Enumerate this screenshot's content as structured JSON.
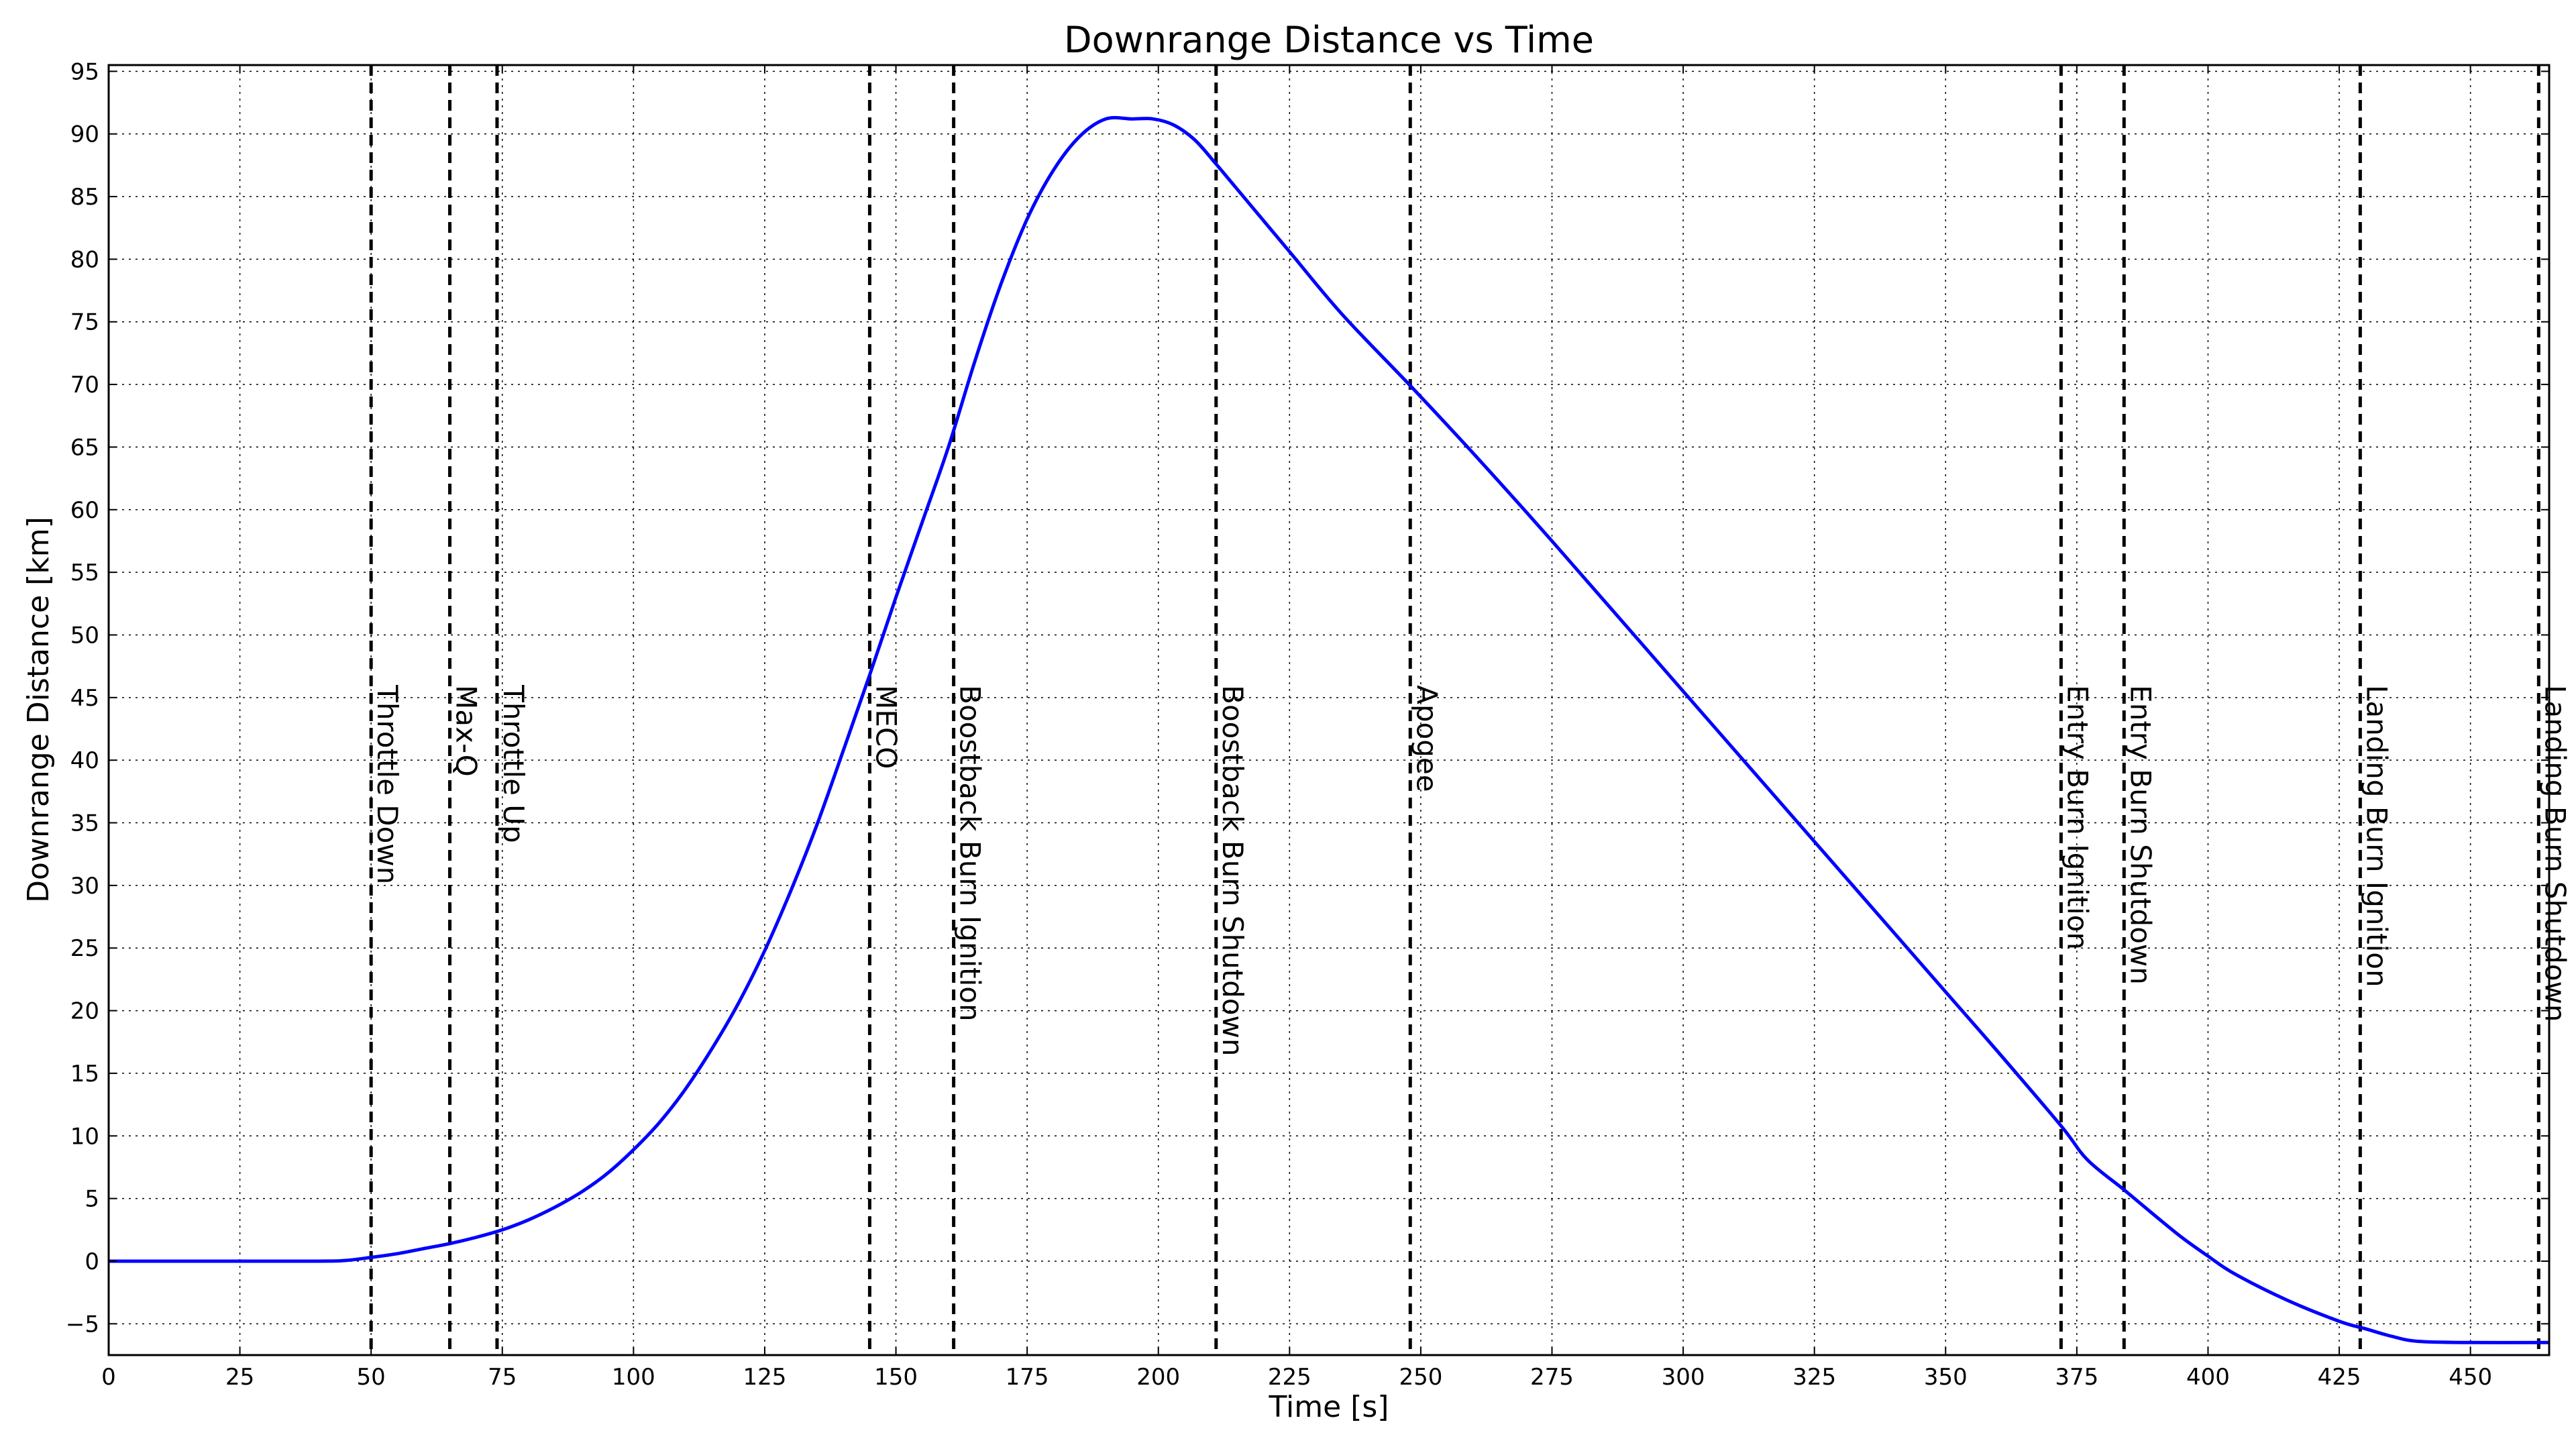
{
  "chart_data": {
    "type": "line",
    "title": "Downrange Distance vs Time",
    "xlabel": "Time [s]",
    "ylabel": "Downrange Distance [km]",
    "xlim": [
      0,
      465
    ],
    "ylim": [
      -7.5,
      95.5
    ],
    "xticks": [
      0,
      25,
      50,
      75,
      100,
      125,
      150,
      175,
      200,
      225,
      250,
      275,
      300,
      325,
      350,
      375,
      400,
      425,
      450
    ],
    "yticks": [
      -5,
      0,
      5,
      10,
      15,
      20,
      25,
      30,
      35,
      40,
      45,
      50,
      55,
      60,
      65,
      70,
      75,
      80,
      85,
      90,
      95
    ],
    "grid": true,
    "line_color": "#0000ff",
    "series": [
      {
        "x": [
          0,
          20,
          40,
          45,
          50,
          55,
          60,
          65,
          70,
          75,
          80,
          85,
          90,
          95,
          100,
          105,
          110,
          115,
          120,
          125,
          130,
          135,
          140,
          145,
          150,
          155,
          160,
          165,
          170,
          175,
          180,
          185,
          190,
          195,
          199,
          203,
          207,
          211,
          215,
          225,
          235,
          248,
          260,
          275,
          300,
          325,
          350,
          360,
          372,
          377,
          384,
          390,
          395,
          400,
          405,
          415,
          425,
          430,
          435,
          440,
          450,
          465
        ],
        "y": [
          0,
          0,
          0,
          0.05,
          0.3,
          0.6,
          1.0,
          1.4,
          1.9,
          2.5,
          3.3,
          4.3,
          5.5,
          7.0,
          8.9,
          11.1,
          13.8,
          17.0,
          20.6,
          24.8,
          29.6,
          34.9,
          40.8,
          46.8,
          53.0,
          59.0,
          65.0,
          71.8,
          78.0,
          83.2,
          87.1,
          89.8,
          91.2,
          91.2,
          91.2,
          90.7,
          89.5,
          87.6,
          85.6,
          80.6,
          75.6,
          69.9,
          64.5,
          57.5,
          45.5,
          33.5,
          21.5,
          16.7,
          10.8,
          8.1,
          5.7,
          3.6,
          1.9,
          0.4,
          -1.0,
          -3.1,
          -4.8,
          -5.4,
          -6.0,
          -6.4,
          -6.5,
          -6.5
        ]
      }
    ],
    "events": [
      {
        "label": "Throttle Down",
        "x": 50
      },
      {
        "label": "Max-Q",
        "x": 65
      },
      {
        "label": "Throttle Up",
        "x": 74
      },
      {
        "label": "MECO",
        "x": 145
      },
      {
        "label": "Boostback Burn Ignition",
        "x": 161
      },
      {
        "label": "Boostback Burn Shutdown",
        "x": 211
      },
      {
        "label": "Apogee",
        "x": 248
      },
      {
        "label": "Entry Burn Ignition",
        "x": 372
      },
      {
        "label": "Entry Burn Shutdown",
        "x": 384
      },
      {
        "label": "Landing Burn Ignition",
        "x": 429
      },
      {
        "label": "Landing Burn Shutdown",
        "x": 463
      }
    ],
    "event_label_y": 46
  }
}
